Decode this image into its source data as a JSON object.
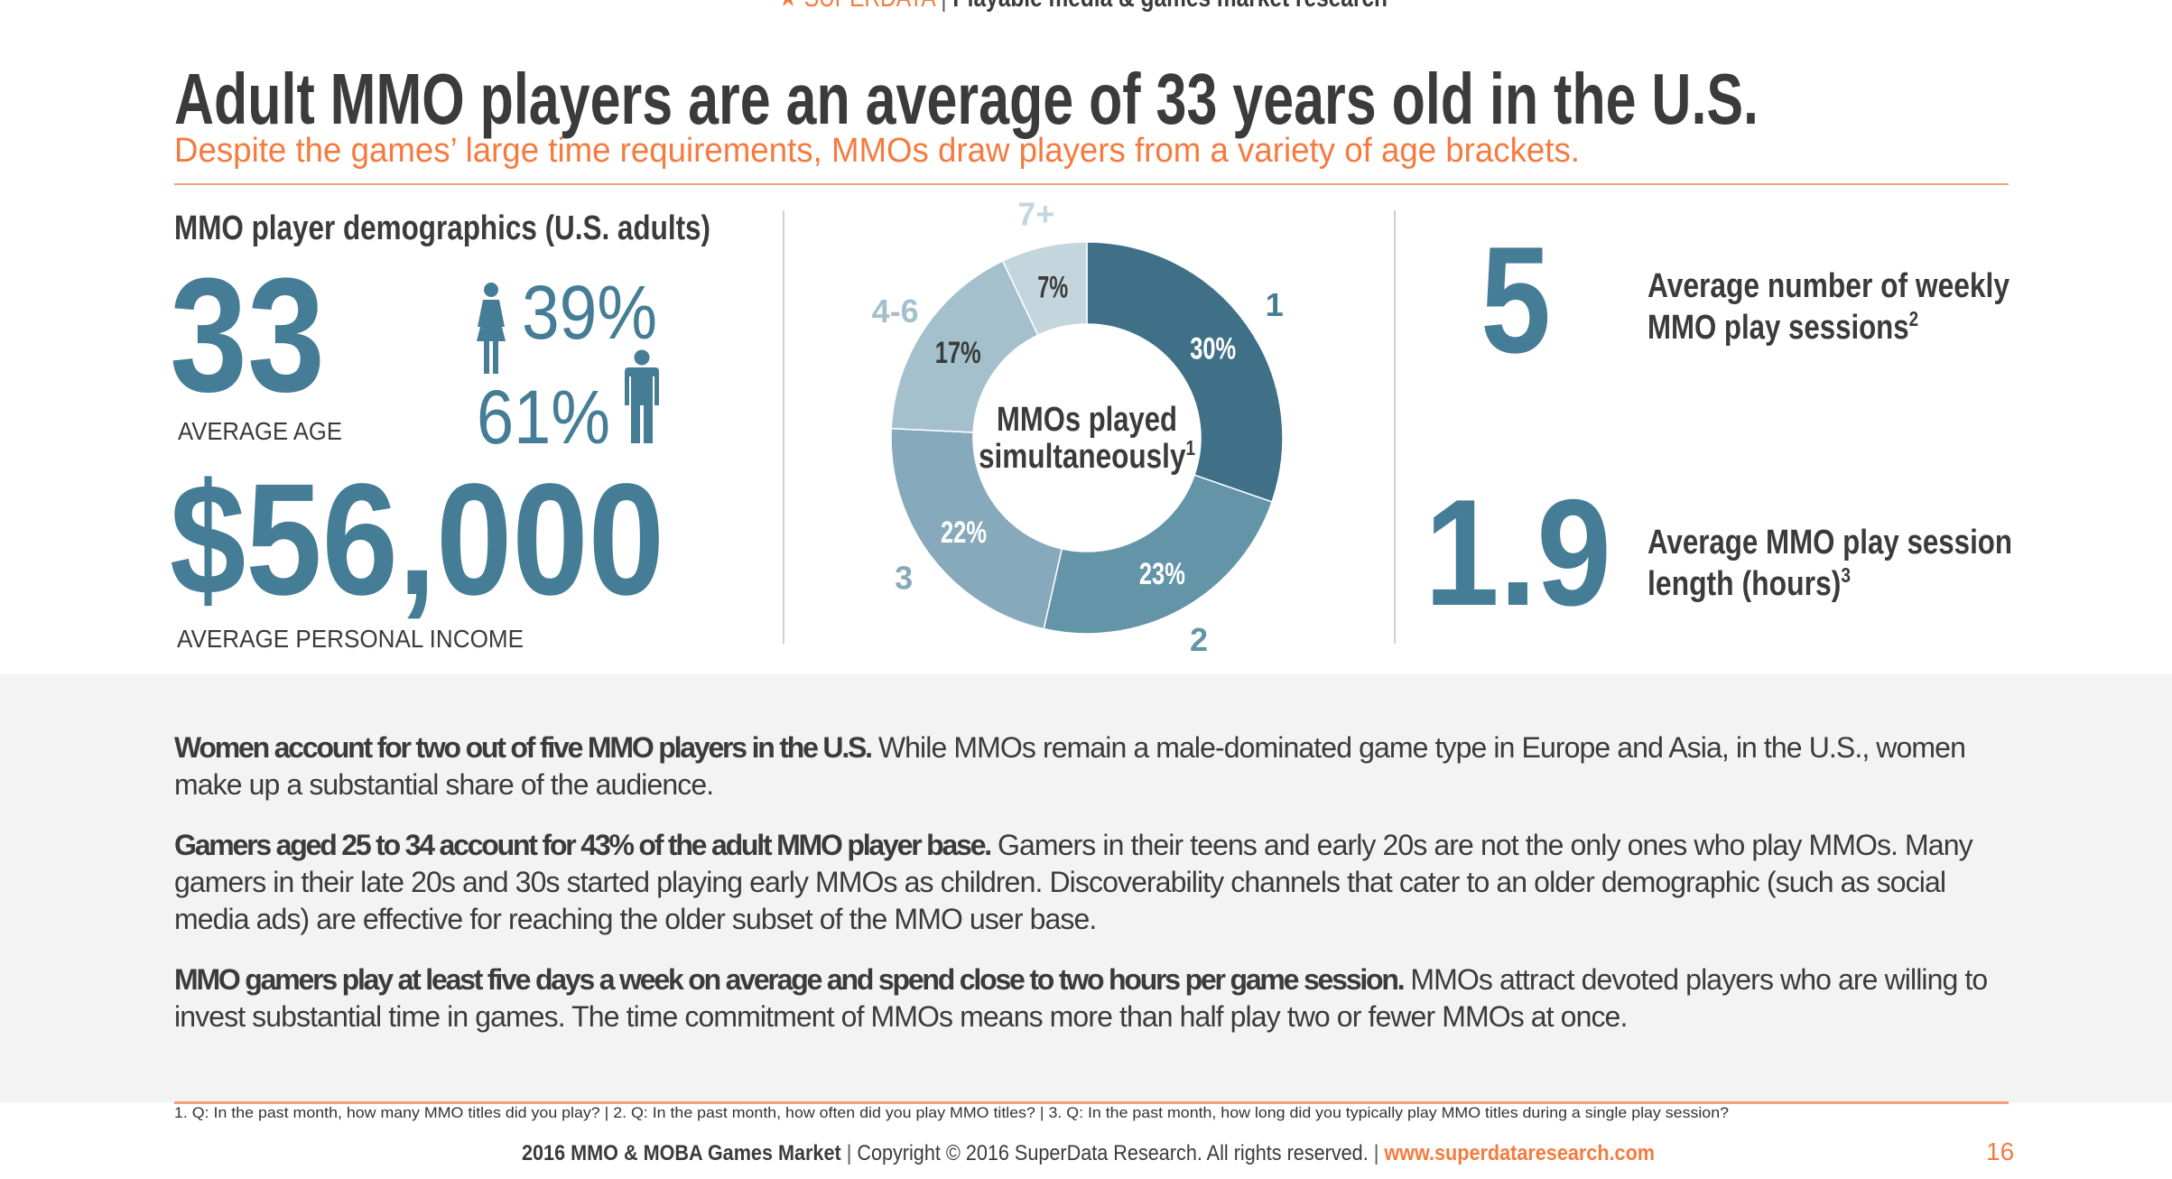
{
  "header": {
    "star_icon": "star-icon",
    "brand": "SUPERDATA",
    "separator": "|",
    "tagline": "Playable media & games market research"
  },
  "title": "Adult MMO players are an average of 33 years old in the U.S.",
  "subtitle": "Despite the games’ large time requirements, MMOs draw players from a variety of age brackets.",
  "demographics": {
    "heading": "MMO player demographics (U.S. adults)",
    "average_age": "33",
    "average_age_label": "AVERAGE AGE",
    "female_pct": "39%",
    "male_pct": "61%",
    "female_icon": "female-person-icon",
    "male_icon": "male-person-icon",
    "income": "$56,000",
    "income_label": "AVERAGE PERSONAL INCOME"
  },
  "chart_data": {
    "type": "pie",
    "variant": "donut",
    "title_line1": "MMOs played",
    "title_line2": "simultaneously",
    "title_footnote": "1",
    "categories": [
      "1",
      "2",
      "3",
      "4-6",
      "7+"
    ],
    "values": [
      30,
      23,
      22,
      17,
      7
    ],
    "value_labels": [
      "30%",
      "23%",
      "22%",
      "17%",
      "7%"
    ],
    "colors": [
      "#3f7088",
      "#6394a8",
      "#86aabb",
      "#a4c0cd",
      "#c3d6de"
    ],
    "category_label_colors": [
      "#467d96",
      "#6394a8",
      "#86aabb",
      "#a4c0cd",
      "#c3d6de"
    ],
    "value_label_colors": [
      "#ffffff",
      "#ffffff",
      "#ffffff",
      "#3b3b3b",
      "#3b3b3b"
    ]
  },
  "stats": {
    "sessions_value": "5",
    "sessions_label_line1": "Average number of weekly",
    "sessions_label_line2": "MMO play sessions",
    "sessions_footnote": "2",
    "length_value": "1.9",
    "length_label_line1": "Average MMO play session",
    "length_label_line2": "length (hours)",
    "length_footnote": "3"
  },
  "paragraphs": [
    {
      "lead": "Women account for two out of five MMO players in the U.S.",
      "text": " While MMOs remain a male-dominated game type in Europe and Asia, in the U.S., women make up a substantial share of the audience."
    },
    {
      "lead": "Gamers aged 25 to 34 account for 43% of the adult MMO player base.",
      "text": " Gamers in their teens and early 20s are not the only ones who play MMOs. Many gamers in their late 20s and 30s started playing early MMOs as children. Discoverability channels that cater to an older demographic (such as social media ads) are effective for reaching the older subset of the MMO user base."
    },
    {
      "lead": "MMO gamers play at least five days a week on average and spend close to two hours per game session.",
      "text": " MMOs attract devoted players who are willing to invest substantial time in games. The time commitment of MMOs means more than half play two or fewer MMOs at once."
    }
  ],
  "footnote": "1. Q: In the past month, how many MMO titles did you play? | 2. Q: In the past month, how often did you play MMO titles? | 3. Q: In the past month, how long did you typically play MMO titles during a single play session?",
  "footer": {
    "report": "2016 MMO & MOBA Games Market",
    "copyright": "Copyright © 2016 SuperData Research. All rights reserved.",
    "pipe": "|",
    "url": "www.superdataresearch.com",
    "page": "16"
  },
  "colors": {
    "accent": "#f47b3f",
    "teal": "#467d96",
    "text": "#3b3b3b",
    "band": "#f3f3f3"
  }
}
